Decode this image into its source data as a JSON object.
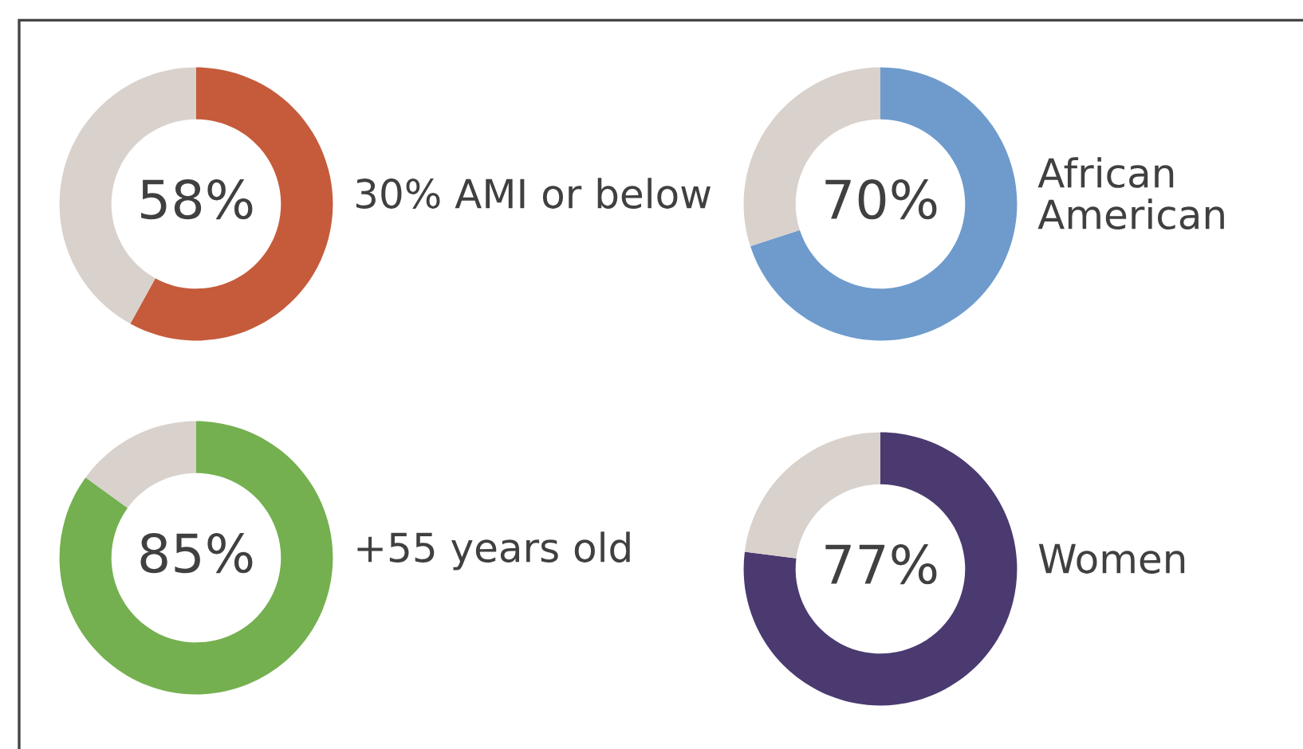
{
  "chart_data": [
    {
      "type": "donut",
      "categories": [
        "30% AMI or below",
        null
      ],
      "values": [
        58,
        42
      ],
      "colors": [
        "#c55b3b",
        "#d9d1cb"
      ],
      "value_labels": [
        "58%",
        null
      ]
    },
    {
      "type": "donut",
      "categories": [
        "African American",
        null
      ],
      "values": [
        70,
        30
      ],
      "colors": [
        "#6e9bcc",
        "#d9d1cb"
      ],
      "value_labels": [
        "70%",
        null
      ]
    },
    {
      "type": "donut",
      "categories": [
        "+55 years old",
        null
      ],
      "values": [
        85,
        15
      ],
      "colors": [
        "#74b04f",
        "#d9d1cb"
      ],
      "value_labels": [
        "85%",
        null
      ]
    },
    {
      "type": "donut",
      "categories": [
        "Women",
        null
      ],
      "values": [
        77,
        23
      ],
      "colors": [
        "#4a3a70",
        "#d9d1cb"
      ],
      "value_labels": [
        "77%",
        null
      ]
    }
  ]
}
